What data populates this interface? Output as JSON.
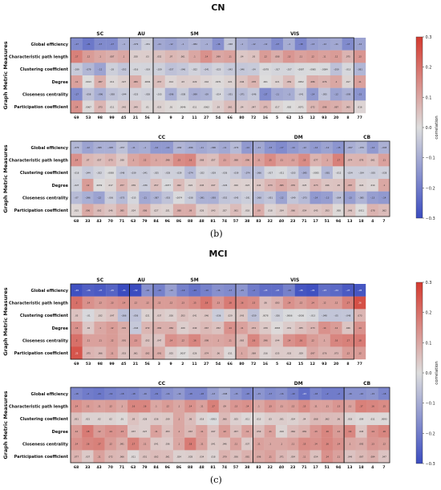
{
  "panels": {
    "cn": {
      "title": "CN",
      "letter": "(b)"
    },
    "mci": {
      "title": "MCI",
      "letter": "(c)"
    }
  },
  "labels": {
    "ylabel": "Graph Metric Measures",
    "colorbar": "correlation"
  },
  "colorbar": {
    "ticks": [
      0.3,
      0.2,
      0.1,
      0.0,
      -0.1,
      -0.2,
      -0.3
    ],
    "tick_labels": [
      "0.3",
      "0.2",
      "0.1",
      "0.0",
      "−0.1",
      "−0.2",
      "−0.3"
    ],
    "colors": {
      "neg": "#3b4cc0",
      "mid": "#dddddd",
      "pos": "#d43a2f"
    }
  },
  "chart_data": [
    {
      "type": "heatmap",
      "title": "CN",
      "ylabel": "Graph Metric Measures",
      "rows": [
        "Global efficiency",
        "Characteristic path length",
        "Clustering coefficient",
        "Degree",
        "Closeness centrality",
        "Participation coefficient"
      ],
      "groups": [
        {
          "name": "SC",
          "count": 5
        },
        {
          "name": "AU",
          "count": 2
        },
        {
          "name": "SM",
          "count": 7
        },
        {
          "name": "VIS",
          "count": 10
        }
      ],
      "columns": [
        "69",
        "53",
        "98",
        "99",
        "45",
        "21",
        "56",
        "3",
        "9",
        "2",
        "11",
        "27",
        "54",
        "66",
        "80",
        "72",
        "16",
        "5",
        "62",
        "15",
        "12",
        "93",
        "20",
        "8",
        "77"
      ],
      "values": [
        [
          -0.17,
          -0.21,
          -0.17,
          -0.17,
          -0.1,
          -0.079,
          -0.031,
          -0.11,
          -0.12,
          -0.1,
          -0.084,
          -0.1,
          -0.16,
          -0.048,
          -0.1,
          -0.12,
          -0.12,
          -0.17,
          -0.1,
          -0.18,
          -0.13,
          -0.12,
          -0.11,
          -0.17,
          -0.12
        ],
        [
          0.17,
          0.12,
          0.1,
          0.087,
          0.1,
          0.028,
          0.03,
          0.052,
          0.07,
          0.061,
          0.1,
          0.14,
          0.099,
          0.11,
          0.04,
          0.05,
          0.12,
          0.088,
          0.13,
          0.11,
          0.12,
          0.11,
          0.12,
          0.075,
          0.13
        ],
        [
          -0.039,
          -0.079,
          -0.12,
          -0.03,
          -0.052,
          -0.016,
          -0.019,
          -0.029,
          -0.057,
          -0.046,
          -0.022,
          -0.041,
          -0.023,
          -0.042,
          -0.046,
          -0.04,
          -0.0078,
          -0.017,
          -0.017,
          -0.0087,
          -0.0065,
          -0.0084,
          -0.059,
          -0.013,
          -0.081
        ],
        [
          0.11,
          0.0013,
          0.087,
          0.011,
          0.027,
          0.089,
          0.0084,
          0.057,
          0.014,
          0.03,
          0.029,
          0.016,
          0.0071,
          0.021,
          0.046,
          0.078,
          0.001,
          0.021,
          0.059,
          0.0052,
          0.086,
          0.076,
          0.1,
          0.017,
          0.11
        ],
        [
          -0.17,
          -0.058,
          -0.096,
          -0.058,
          -0.044,
          -0.023,
          -0.028,
          -0.015,
          -0.096,
          -0.038,
          -0.099,
          -0.09,
          -0.014,
          -0.051,
          -0.071,
          -0.046,
          -0.17,
          -0.11,
          -0.1,
          -0.041,
          -0.14,
          -0.055,
          -0.12,
          -0.095,
          -0.15
        ],
        [
          0.14,
          0.0067,
          0.073,
          0.011,
          0.042,
          0.049,
          0.01,
          0.023,
          0.01,
          0.0046,
          0.011,
          0.0062,
          0.03,
          0.061,
          0.04,
          0.047,
          0.071,
          0.017,
          0.002,
          0.0071,
          0.072,
          0.098,
          0.087,
          0.065,
          0.016
        ]
      ]
    },
    {
      "type": "heatmap",
      "title": "CN",
      "ylabel": "Graph Metric Measures",
      "rows": [
        "Global efficiency",
        "Characteristic path length",
        "Clustering coefficient",
        "Degree",
        "Closeness centrality",
        "Participation coefficient"
      ],
      "groups": [
        {
          "name": "CC",
          "count": 16
        },
        {
          "name": "DM",
          "count": 8
        },
        {
          "name": "CB",
          "count": 4
        }
      ],
      "columns": [
        "68",
        "33",
        "43",
        "70",
        "71",
        "63",
        "79",
        "84",
        "96",
        "86",
        "88",
        "48",
        "81",
        "74",
        "57",
        "38",
        "83",
        "32",
        "40",
        "23",
        "71",
        "17",
        "51",
        "94",
        "13",
        "18",
        "4",
        "7"
      ],
      "values": [
        [
          -0.079,
          -0.12,
          -0.095,
          -0.095,
          -0.057,
          -0.11,
          -0.1,
          -0.14,
          -0.14,
          -0.082,
          -0.096,
          -0.11,
          -0.096,
          -0.11,
          -0.072,
          -0.14,
          -0.11,
          -0.15,
          -0.17,
          -0.14,
          -0.12,
          -0.14,
          -0.12,
          -0.15,
          -0.097,
          -0.079,
          -0.14,
          -0.093
        ],
        [
          0.14,
          0.07,
          0.057,
          0.073,
          0.038,
          0.1,
          0.12,
          0.1,
          0.098,
          0.15,
          0.16,
          0.068,
          0.057,
          0.11,
          0.088,
          0.096,
          0.11,
          0.15,
          0.11,
          0.11,
          0.15,
          0.077,
          0.1,
          0.17,
          0.074,
          0.076,
          0.061,
          0.11
        ],
        [
          -0.018,
          -0.044,
          -0.022,
          -0.0058,
          -0.048,
          -0.039,
          -0.041,
          -0.025,
          -0.028,
          -0.029,
          -0.074,
          -0.022,
          -0.029,
          -0.026,
          -0.039,
          -0.074,
          -0.066,
          -0.017,
          -0.011,
          -0.033,
          -0.095,
          -0.0055,
          -0.081,
          -0.012,
          -0.034,
          -0.034,
          -0.035,
          -0.028
        ],
        [
          -0.027,
          0.12,
          0.0039,
          0.017,
          0.077,
          0.039,
          -0.036,
          0.057,
          -0.0077,
          0.062,
          0.022,
          0.045,
          0.047,
          -0.026,
          0.026,
          0.023,
          0.044,
          0.073,
          0.095,
          0.076,
          0.025,
          0.073,
          0.046,
          0.05,
          0.087,
          0.024,
          0.014,
          0.1
        ],
        [
          -0.07,
          -0.096,
          -0.12,
          -0.036,
          -0.073,
          -0.015,
          -0.11,
          -0.087,
          -0.053,
          -0.0074,
          -0.038,
          -0.091,
          -0.093,
          -0.052,
          -0.045,
          -0.031,
          -0.068,
          -0.051,
          -0.12,
          -0.049,
          -0.073,
          -0.14,
          -0.13,
          -0.064,
          -0.13,
          -0.085,
          -0.13,
          -0.14
        ],
        [
          0.015,
          0.096,
          0.062,
          0.046,
          0.085,
          0.024,
          0.086,
          0.027,
          0.021,
          0.088,
          0.09,
          0.026,
          0.043,
          0.027,
          0.061,
          0.018,
          0.09,
          0.018,
          0.034,
          0.066,
          0.054,
          0.045,
          0.053,
          0.008,
          0.048,
          0.0011,
          0.078,
          0.062
        ]
      ]
    },
    {
      "type": "heatmap",
      "title": "MCI",
      "ylabel": "Graph Metric Measures",
      "rows": [
        "Global efficiency",
        "Characteristic path length",
        "Clustering coefficient",
        "Degree",
        "Closeness centrality",
        "Participation coefficient"
      ],
      "groups": [
        {
          "name": "SC",
          "count": 5
        },
        {
          "name": "AU",
          "count": 2
        },
        {
          "name": "SM",
          "count": 7
        },
        {
          "name": "VIS",
          "count": 10
        }
      ],
      "columns": [
        "69",
        "53",
        "98",
        "99",
        "45",
        "21",
        "56",
        "3",
        "9",
        "2",
        "11",
        "27",
        "54",
        "66",
        "80",
        "72",
        "16",
        "5",
        "62",
        "15",
        "12",
        "93",
        "20",
        "8",
        "77"
      ],
      "values": [
        [
          -0.29,
          -0.26,
          -0.27,
          -0.25,
          -0.31,
          -0.32,
          -0.16,
          -0.19,
          -0.13,
          -0.19,
          -0.22,
          -0.19,
          -0.16,
          -0.17,
          -0.15,
          -0.2,
          -0.23,
          -0.23,
          -0.19,
          -0.28,
          -0.29,
          -0.23,
          -0.24,
          -0.27,
          -0.28
        ],
        [
          0.2,
          0.14,
          0.12,
          0.13,
          0.14,
          0.12,
          0.12,
          0.12,
          0.12,
          0.13,
          0.15,
          0.19,
          0.13,
          0.18,
          0.16,
          0.15,
          0.06,
          0.083,
          0.14,
          0.12,
          0.14,
          0.12,
          0.12,
          0.17,
          0.26
        ],
        [
          0.05,
          -0.01,
          0.032,
          0.047,
          -0.066,
          -0.056,
          0.021,
          0.037,
          0.026,
          0.053,
          0.041,
          0.046,
          -0.036,
          0.029,
          0.043,
          -0.059,
          0.0078,
          -0.026,
          -0.0066,
          -0.0036,
          -0.013,
          -0.048,
          -0.05,
          -0.048,
          0.073
        ],
        [
          0.14,
          0.04,
          0.1,
          0.12,
          0.091,
          -0.044,
          0.072,
          0.084,
          0.084,
          0.029,
          0.049,
          0.067,
          0.052,
          0.14,
          0.11,
          0.074,
          0.039,
          0.0065,
          0.031,
          0.055,
          0.073,
          0.14,
          0.12,
          0.046,
          0.14
        ],
        [
          0.2,
          0.11,
          0.11,
          0.12,
          0.091,
          0.13,
          0.052,
          0.047,
          0.14,
          0.12,
          0.16,
          0.098,
          0.1,
          0.11,
          0.065,
          0.16,
          0.096,
          0.044,
          0.14,
          0.16,
          0.12,
          0.1,
          0.16,
          0.17,
          0.18
        ],
        [
          0.25,
          0.075,
          0.066,
          0.11,
          0.053,
          0.061,
          0.082,
          0.091,
          0.025,
          0.0037,
          0.026,
          0.074,
          0.06,
          0.011,
          0.1,
          0.069,
          0.016,
          0.035,
          0.033,
          0.029,
          0.097,
          0.076,
          0.073,
          0.12,
          0.12
        ]
      ]
    },
    {
      "type": "heatmap",
      "title": "MCI",
      "ylabel": "Graph Metric Measures",
      "rows": [
        "Global efficiency",
        "Characteristic path length",
        "Clustering coefficient",
        "Degree",
        "Closeness centrality",
        "Participation coefficient"
      ],
      "groups": [
        {
          "name": "CC",
          "count": 16
        },
        {
          "name": "DM",
          "count": 8
        },
        {
          "name": "CB",
          "count": 4
        }
      ],
      "columns": [
        "68",
        "33",
        "43",
        "70",
        "71",
        "63",
        "79",
        "84",
        "96",
        "86",
        "88",
        "48",
        "81",
        "74",
        "57",
        "38",
        "83",
        "32",
        "40",
        "23",
        "71",
        "17",
        "51",
        "94",
        "13",
        "18",
        "4",
        "7"
      ],
      "values": [
        [
          -0.18,
          -0.2,
          -0.21,
          -0.19,
          -0.18,
          -0.18,
          -0.16,
          -0.19,
          -0.16,
          -0.14,
          -0.18,
          -0.18,
          -0.13,
          -0.098,
          -0.15,
          -0.18,
          -0.15,
          -0.17,
          -0.16,
          -0.19,
          -0.23,
          -0.18,
          -0.2,
          -0.2,
          -0.16,
          -0.16,
          -0.15,
          -0.18
        ],
        [
          0.14,
          0.12,
          0.11,
          0.12,
          0.1,
          0.16,
          0.16,
          0.1,
          0.12,
          0.1,
          0.14,
          0.11,
          0.17,
          0.09,
          0.13,
          0.14,
          0.1,
          0.13,
          0.11,
          0.12,
          0.15,
          0.11,
          0.11,
          0.13,
          0.11,
          0.17,
          0.16,
          0.15
        ],
        [
          0.051,
          0.021,
          0.02,
          0.02,
          0.01,
          0.05,
          0.028,
          0.036,
          0.039,
          0.1,
          0.06,
          0.018,
          -0.0053,
          0.066,
          0.025,
          0.011,
          0.013,
          0.03,
          0.031,
          0.024,
          0.04,
          0.068,
          0.062,
          0.06,
          0.018,
          0.009,
          0.011,
          0.0093
        ],
        [
          0.12,
          0.18,
          0.12,
          0.14,
          0.13,
          0.037,
          0.027,
          0.11,
          0.053,
          0.1,
          0.067,
          0.11,
          0.047,
          0.12,
          0.057,
          0.11,
          0.059,
          0.11,
          0.019,
          0.064,
          0.081,
          0.13,
          0.16,
          0.12,
          0.16,
          0.045,
          0.14,
          0.16
        ],
        [
          0.14,
          0.16,
          0.17,
          0.12,
          0.091,
          0.17,
          0.11,
          0.041,
          0.036,
          0.1,
          0.18,
          0.11,
          0.041,
          0.046,
          0.11,
          0.037,
          0.11,
          0.1,
          0.1,
          0.11,
          0.15,
          0.14,
          0.16,
          0.14,
          0.1,
          0.092,
          0.13,
          0.12
        ],
        [
          0.077,
          0.037,
          0.11,
          0.072,
          0.066,
          0.011,
          0.051,
          0.062,
          0.061,
          0.024,
          0.028,
          0.034,
          0.018,
          0.079,
          0.056,
          0.081,
          0.096,
          0.11,
          0.071,
          0.054,
          0.11,
          0.054,
          0.14,
          0.11,
          0.049,
          0.067,
          0.084,
          0.047
        ]
      ]
    }
  ]
}
